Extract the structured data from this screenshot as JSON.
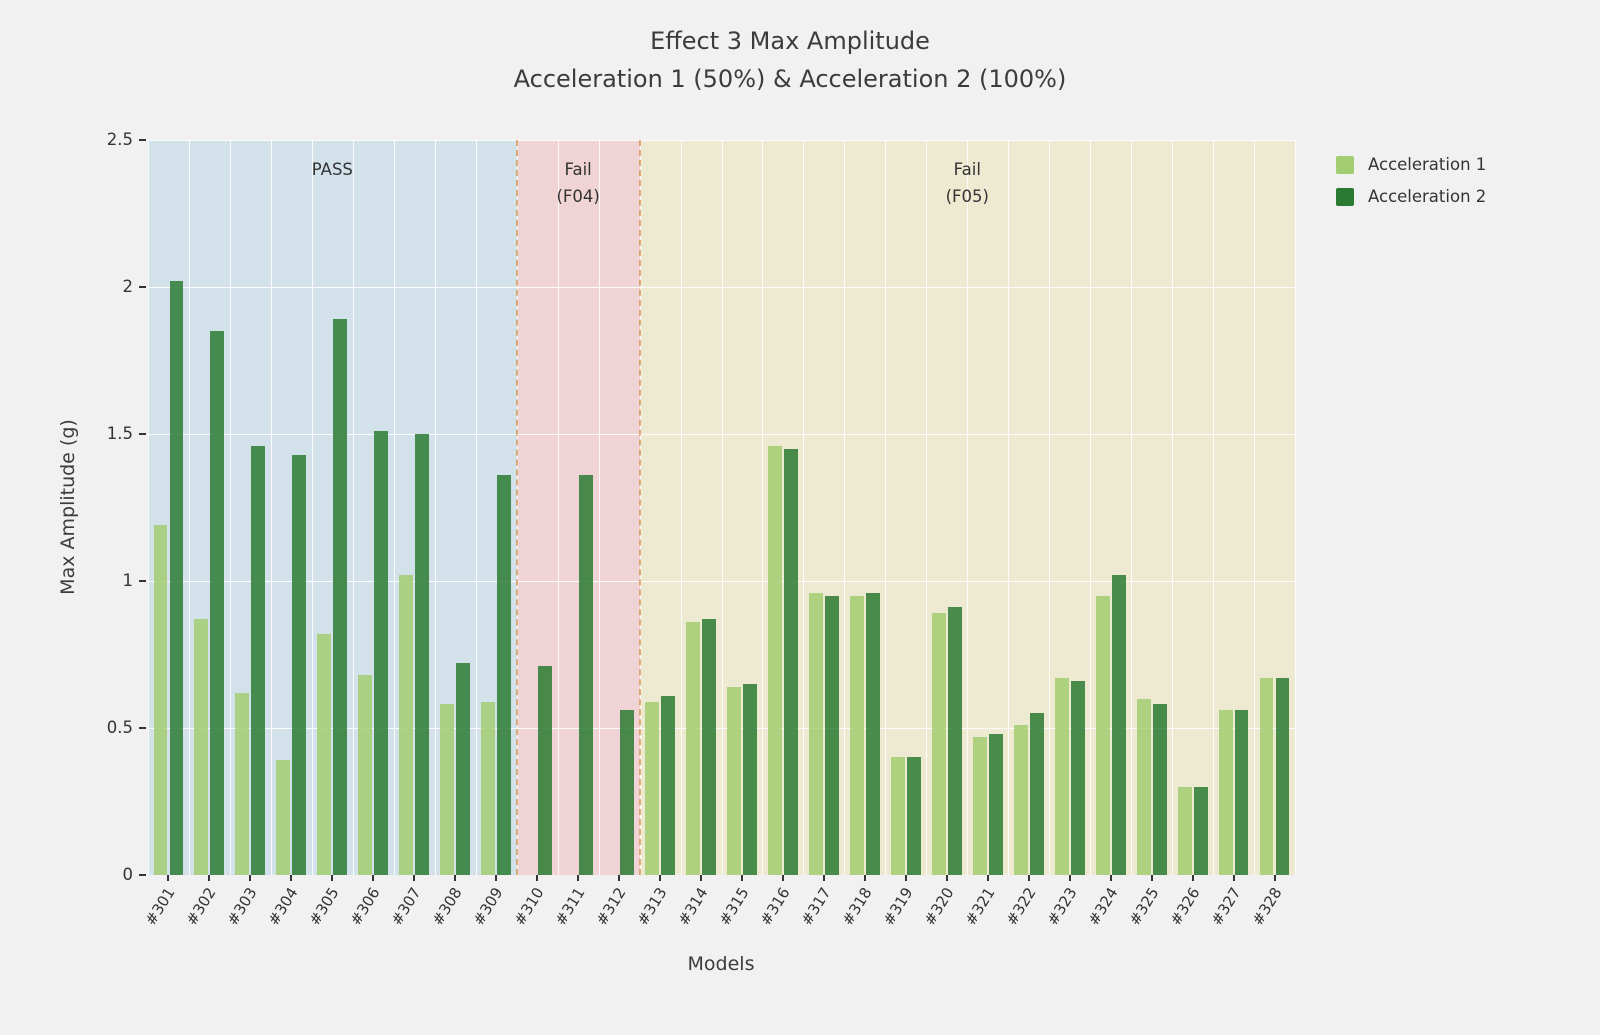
{
  "chart_data": {
    "type": "bar",
    "title": "Effect 3 Max Amplitude",
    "subtitle": "Acceleration 1 (50%) & Acceleration 2 (100%)",
    "xlabel": "Models",
    "ylabel": "Max Amplitude (g)",
    "ylim": [
      0,
      2.5
    ],
    "yticks": [
      0,
      0.5,
      1,
      1.5,
      2,
      2.5
    ],
    "grid": true,
    "legend_position": "top-right",
    "bar_opacity": 0.85,
    "background_color": "#f0f1f0",
    "categories": [
      "#301",
      "#302",
      "#303",
      "#304",
      "#305",
      "#306",
      "#307",
      "#308",
      "#309",
      "#310",
      "#311",
      "#312",
      "#313",
      "#314",
      "#315",
      "#316",
      "#317",
      "#318",
      "#319",
      "#320",
      "#321",
      "#322",
      "#323",
      "#324",
      "#325",
      "#326",
      "#327",
      "#328"
    ],
    "series": [
      {
        "name": "Acceleration 1",
        "color": "#a2cd71",
        "values": [
          1.19,
          0.87,
          0.62,
          0.39,
          0.82,
          0.68,
          1.02,
          0.58,
          0.59,
          0,
          0,
          0,
          0.59,
          0.86,
          0.64,
          1.46,
          0.96,
          0.95,
          0.4,
          0.89,
          0.47,
          0.51,
          0.67,
          0.95,
          0.6,
          0.3,
          0.56,
          0.67
        ]
      },
      {
        "name": "Acceleration 2",
        "color": "#2b7a33",
        "values": [
          2.02,
          1.85,
          1.46,
          1.43,
          1.89,
          1.51,
          1.5,
          0.72,
          1.36,
          0.71,
          1.36,
          0.56,
          0.61,
          0.87,
          0.65,
          1.45,
          0.95,
          0.96,
          0.4,
          0.91,
          0.48,
          0.55,
          0.66,
          1.02,
          0.58,
          0.3,
          0.56,
          0.67
        ]
      }
    ],
    "regions": [
      {
        "id": "pass",
        "label_lines": [
          "PASS"
        ],
        "start_index": 0,
        "end_index": 8,
        "fill": "rgba(188,212,230,0.55)"
      },
      {
        "id": "fail-f04",
        "label_lines": [
          "Fail",
          "(F04)"
        ],
        "start_index": 9,
        "end_index": 11,
        "fill": "rgba(240,185,190,0.55)"
      },
      {
        "id": "fail-f05",
        "label_lines": [
          "Fail",
          "(F05)"
        ],
        "start_index": 12,
        "end_index": 27,
        "fill": "rgba(235,225,178,0.5)"
      }
    ],
    "dividers": [
      {
        "at_boundary_index": 9,
        "style": "dashed",
        "color": "rgba(214,147,86,0.75)"
      },
      {
        "at_boundary_index": 12,
        "style": "dashed",
        "color": "rgba(214,147,86,0.75)"
      }
    ]
  }
}
